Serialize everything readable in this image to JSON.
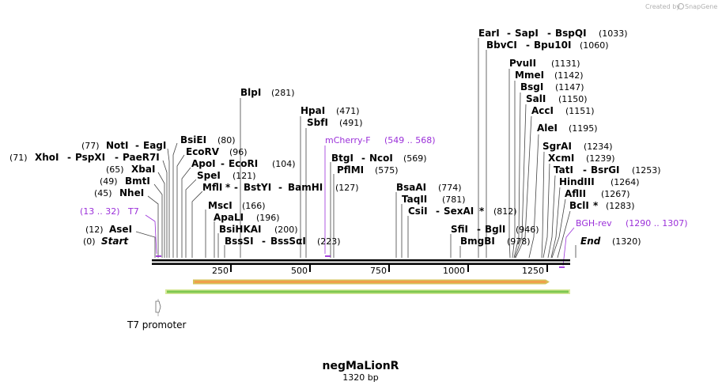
{
  "brand": {
    "text": "Created by",
    "name": "SnapGene"
  },
  "title": "negMaLionR",
  "subtitle": "1320 bp",
  "ruler": {
    "ticks": [
      "250",
      "500",
      "750",
      "1000",
      "1250"
    ]
  },
  "feature": {
    "label": "T7 promoter"
  },
  "ends": {
    "start": "Start",
    "start_pos": "(0)",
    "end": "End",
    "end_pos": "(1320)"
  },
  "sites": {
    "aseI": {
      "name": "AseI",
      "pos": "(12)"
    },
    "nheI": {
      "name": "NheI",
      "pos": "(45)"
    },
    "bmtI": {
      "name": "BmtI",
      "pos": "(49)"
    },
    "xbaI": {
      "name": "XbaI",
      "pos": "(65)"
    },
    "xhoI": {
      "pre": "(71)",
      "a": "XhoI",
      "b": "PspXI",
      "c": "PaeR7I"
    },
    "notI": {
      "pre": "(77)",
      "a": "NotI",
      "b": "EagI"
    },
    "bsiEI": {
      "name": "BsiEI",
      "pos": "(80)"
    },
    "ecoRV": {
      "name": "EcoRV",
      "pos": "(96)"
    },
    "apoI": {
      "a": "ApoI",
      "b": "EcoRI",
      "pos": "(104)"
    },
    "speI": {
      "name": "SpeI",
      "pos": "(121)"
    },
    "mflI": {
      "a": "MflI",
      "star": "*",
      "b": "BstYI",
      "c": "BamHI",
      "pos": "(127)"
    },
    "mscI": {
      "name": "MscI",
      "pos": "(166)"
    },
    "apaLI": {
      "name": "ApaLI",
      "pos": "(196)"
    },
    "bsiHKAI": {
      "name": "BsiHKAI",
      "pos": "(200)"
    },
    "bssSI": {
      "a": "BssSI",
      "b": "BssSαI",
      "pos": "(223)"
    },
    "blpI": {
      "name": "BlpI",
      "pos": "(281)"
    },
    "hpaI": {
      "name": "HpaI",
      "pos": "(471)"
    },
    "sbfI": {
      "name": "SbfI",
      "pos": "(491)"
    },
    "btgI": {
      "a": "BtgI",
      "b": "NcoI",
      "pos": "(569)"
    },
    "pflMI": {
      "name": "PflMI",
      "pos": "(575)"
    },
    "bsaAI": {
      "name": "BsaAI",
      "pos": "(774)"
    },
    "taqII": {
      "name": "TaqII",
      "pos": "(781)"
    },
    "csiI": {
      "a": "CsiI",
      "b": "SexAI",
      "star": "*",
      "pos": "(812)"
    },
    "sfiI": {
      "a": "SfiI",
      "b": "BglI",
      "pos": "(946)"
    },
    "bmgBI": {
      "name": "BmgBI",
      "pos": "(978)"
    },
    "earI": {
      "a": "EarI",
      "b": "SapI",
      "c": "BspQI",
      "pos": "(1033)"
    },
    "bbvCI": {
      "a": "BbvCI",
      "b": "Bpu10I",
      "pos": "(1060)"
    },
    "pvuII": {
      "name": "PvuII",
      "pos": "(1131)"
    },
    "mmeI": {
      "name": "MmeI",
      "pos": "(1142)"
    },
    "bsgI": {
      "name": "BsgI",
      "pos": "(1147)"
    },
    "salI": {
      "name": "SalI",
      "pos": "(1150)"
    },
    "accI": {
      "name": "AccI",
      "pos": "(1151)"
    },
    "aleI": {
      "name": "AleI",
      "pos": "(1195)"
    },
    "sgrAI": {
      "name": "SgrAI",
      "pos": "(1234)"
    },
    "xcmI": {
      "name": "XcmI",
      "pos": "(1239)"
    },
    "tatI": {
      "a": "TatI",
      "b": "BsrGI",
      "pos": "(1253)"
    },
    "hindIII": {
      "name": "HindIII",
      "pos": "(1264)"
    },
    "aflII": {
      "name": "AflII",
      "pos": "(1267)"
    },
    "bclI": {
      "name": "BclI",
      "star": "*",
      "pos": "(1283)"
    }
  },
  "primers": {
    "t7": {
      "range": "(13 .. 32)",
      "name": "T7"
    },
    "mcherry": {
      "name": "mCherry-F",
      "range": "(549 .. 568)"
    },
    "bgh": {
      "name": "BGH-rev",
      "range": "(1290 .. 1307)"
    }
  },
  "colors": {
    "primer": "#9b30d9",
    "orf_fill": "#f0a04b",
    "orf_border": "#d4c25a",
    "green_fill": "#7ec850",
    "green_border": "#d8e89a"
  }
}
